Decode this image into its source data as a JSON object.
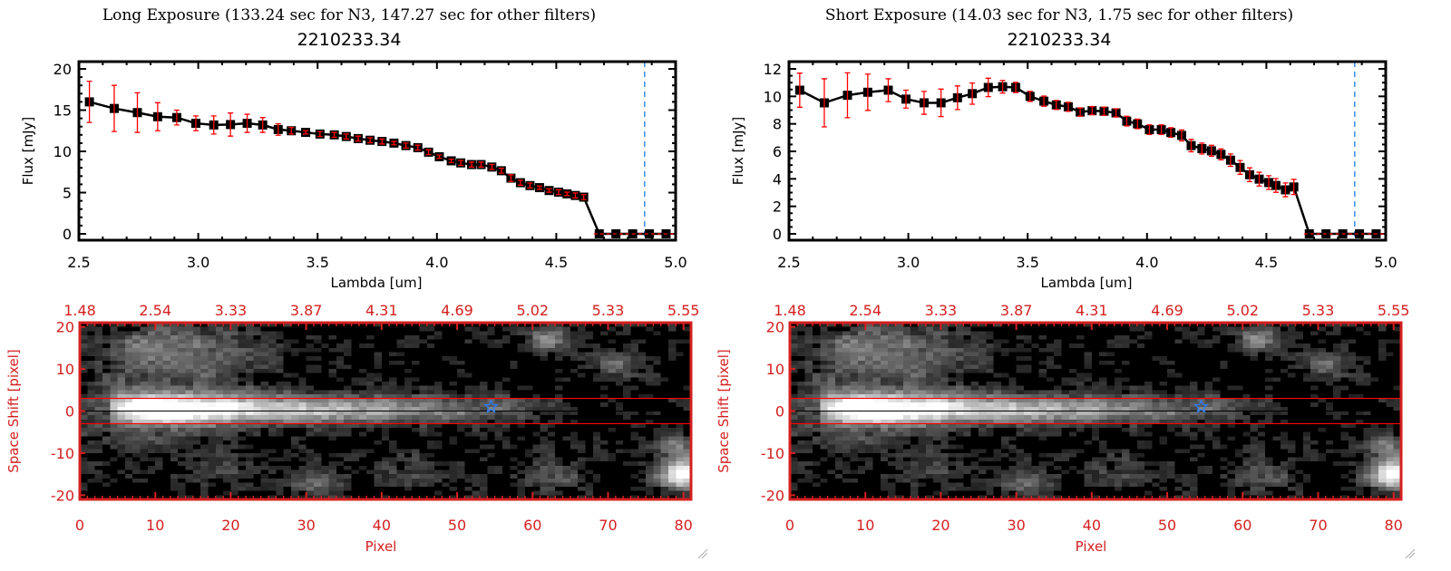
{
  "colors": {
    "axis": "#000000",
    "error": "#ff0000",
    "marker": "#000000",
    "cutoff": "#3a8ee6",
    "image_axis": "#d42020",
    "aperture": "#ff0000",
    "star": "#2a7fff"
  },
  "chart_data": [
    {
      "type": "line",
      "title": "Long Exposure (133.24 sec for N3, 147.27 sec for other filters)",
      "subtitle": "2210233.34",
      "xlabel": "Lambda [um]",
      "ylabel": "Flux [mJy]",
      "xlim": [
        2.5,
        5.0
      ],
      "ylim": [
        0,
        20
      ],
      "xticks": [
        "2.5",
        "3.0",
        "3.5",
        "4.0",
        "4.5",
        "5.0"
      ],
      "yticks": [
        "0",
        "5",
        "10",
        "15",
        "20"
      ],
      "cutoff_lambda": 4.87,
      "x": [
        2.544,
        2.648,
        2.745,
        2.83,
        2.91,
        2.99,
        3.065,
        3.135,
        3.205,
        3.27,
        3.335,
        3.39,
        3.45,
        3.51,
        3.57,
        3.62,
        3.67,
        3.72,
        3.77,
        3.82,
        3.87,
        3.92,
        3.965,
        4.01,
        4.06,
        4.1,
        4.145,
        4.185,
        4.23,
        4.27,
        4.31,
        4.35,
        4.39,
        4.43,
        4.47,
        4.51,
        4.545,
        4.58,
        4.615,
        4.68,
        4.75,
        4.82,
        4.89,
        4.96
      ],
      "y": [
        16.0,
        15.2,
        14.7,
        14.2,
        14.1,
        13.4,
        13.2,
        13.25,
        13.4,
        13.2,
        12.65,
        12.5,
        12.3,
        12.1,
        12.0,
        11.8,
        11.55,
        11.35,
        11.2,
        11.0,
        10.7,
        10.45,
        9.9,
        9.35,
        8.85,
        8.6,
        8.4,
        8.4,
        8.1,
        7.65,
        6.75,
        6.2,
        5.85,
        5.6,
        5.25,
        5.05,
        4.85,
        4.65,
        4.45,
        0,
        0,
        0,
        0,
        0
      ],
      "yerr": [
        2.5,
        2.8,
        2.4,
        1.7,
        0.9,
        0.9,
        1.1,
        1.4,
        1.1,
        0.9,
        0.7,
        0.4,
        0.2,
        0.3,
        0.3,
        0.3,
        0.3,
        0.3,
        0.3,
        0.2,
        0.3,
        0.3,
        0.3,
        0.2,
        0.2,
        0.3,
        0.3,
        0.3,
        0.3,
        0.3,
        0.4,
        0.3,
        0.3,
        0.2,
        0.2,
        0.3,
        0.2,
        0.3,
        0.3,
        0,
        0,
        0,
        0,
        0
      ]
    },
    {
      "type": "line",
      "title": "Short Exposure (14.03 sec for N3, 1.75 sec for other filters)",
      "subtitle": "2210233.34",
      "xlabel": "Lambda [um]",
      "ylabel": "Flux [mJy]",
      "xlim": [
        2.5,
        5.0
      ],
      "ylim": [
        0,
        12
      ],
      "xticks": [
        "2.5",
        "3.0",
        "3.5",
        "4.0",
        "4.5",
        "5.0"
      ],
      "yticks": [
        "0",
        "2",
        "4",
        "6",
        "8",
        "10",
        "12"
      ],
      "cutoff_lambda": 4.87,
      "x": [
        2.545,
        2.648,
        2.745,
        2.83,
        2.916,
        2.99,
        3.066,
        3.137,
        3.206,
        3.268,
        3.335,
        3.395,
        3.45,
        3.51,
        3.568,
        3.62,
        3.67,
        3.72,
        3.77,
        3.82,
        3.87,
        3.915,
        3.96,
        4.01,
        4.06,
        4.1,
        4.145,
        4.185,
        4.23,
        4.27,
        4.31,
        4.35,
        4.39,
        4.43,
        4.47,
        4.51,
        4.54,
        4.58,
        4.615,
        4.68,
        4.75,
        4.82,
        4.89,
        4.96
      ],
      "y": [
        10.45,
        9.53,
        10.08,
        10.3,
        10.45,
        9.8,
        9.53,
        9.53,
        9.9,
        10.2,
        10.65,
        10.7,
        10.65,
        10.0,
        9.65,
        9.38,
        9.24,
        8.86,
        8.96,
        8.92,
        8.8,
        8.2,
        8.0,
        7.58,
        7.58,
        7.37,
        7.16,
        6.42,
        6.2,
        6.04,
        5.78,
        5.36,
        4.83,
        4.3,
        3.98,
        3.73,
        3.52,
        3.2,
        3.41,
        0,
        0,
        0,
        0,
        0
      ],
      "yerr": [
        1.24,
        1.75,
        1.63,
        1.32,
        0.83,
        0.65,
        0.83,
        1.0,
        0.86,
        0.77,
        0.67,
        0.46,
        0.37,
        0.37,
        0.37,
        0.33,
        0.33,
        0.3,
        0.3,
        0.3,
        0.3,
        0.35,
        0.35,
        0.35,
        0.35,
        0.35,
        0.4,
        0.45,
        0.4,
        0.4,
        0.4,
        0.45,
        0.5,
        0.5,
        0.5,
        0.5,
        0.5,
        0.5,
        0.55,
        0,
        0,
        0,
        0,
        0
      ]
    },
    {
      "type": "heatmap",
      "colormap": "gray",
      "xlabel": "Pixel",
      "ylabel": "Space Shift [pixel]",
      "xlim": [
        0,
        81
      ],
      "ylim": [
        -21,
        21
      ],
      "xticks": [
        "0",
        "10",
        "20",
        "30",
        "40",
        "50",
        "60",
        "70",
        "80"
      ],
      "yticks": [
        "-20",
        "-10",
        "0",
        "10",
        "20"
      ],
      "top_ticks": [
        "1.48",
        "2.54",
        "3.33",
        "3.87",
        "4.31",
        "4.69",
        "5.02",
        "5.33",
        "5.55"
      ],
      "aperture_lines": [
        -3,
        3
      ],
      "star": [
        54.5,
        1
      ]
    },
    {
      "type": "heatmap",
      "colormap": "gray",
      "xlabel": "Pixel",
      "ylabel": "Space Shift [pixel]",
      "xlim": [
        0,
        81
      ],
      "ylim": [
        -21,
        21
      ],
      "xticks": [
        "0",
        "10",
        "20",
        "30",
        "40",
        "50",
        "60",
        "70",
        "80"
      ],
      "yticks": [
        "-20",
        "-10",
        "0",
        "10",
        "20"
      ],
      "top_ticks": [
        "1.48",
        "2.54",
        "3.33",
        "3.87",
        "4.31",
        "4.69",
        "5.02",
        "5.33",
        "5.55"
      ],
      "aperture_lines": [
        -3,
        3
      ],
      "star": [
        54.5,
        1
      ]
    }
  ]
}
